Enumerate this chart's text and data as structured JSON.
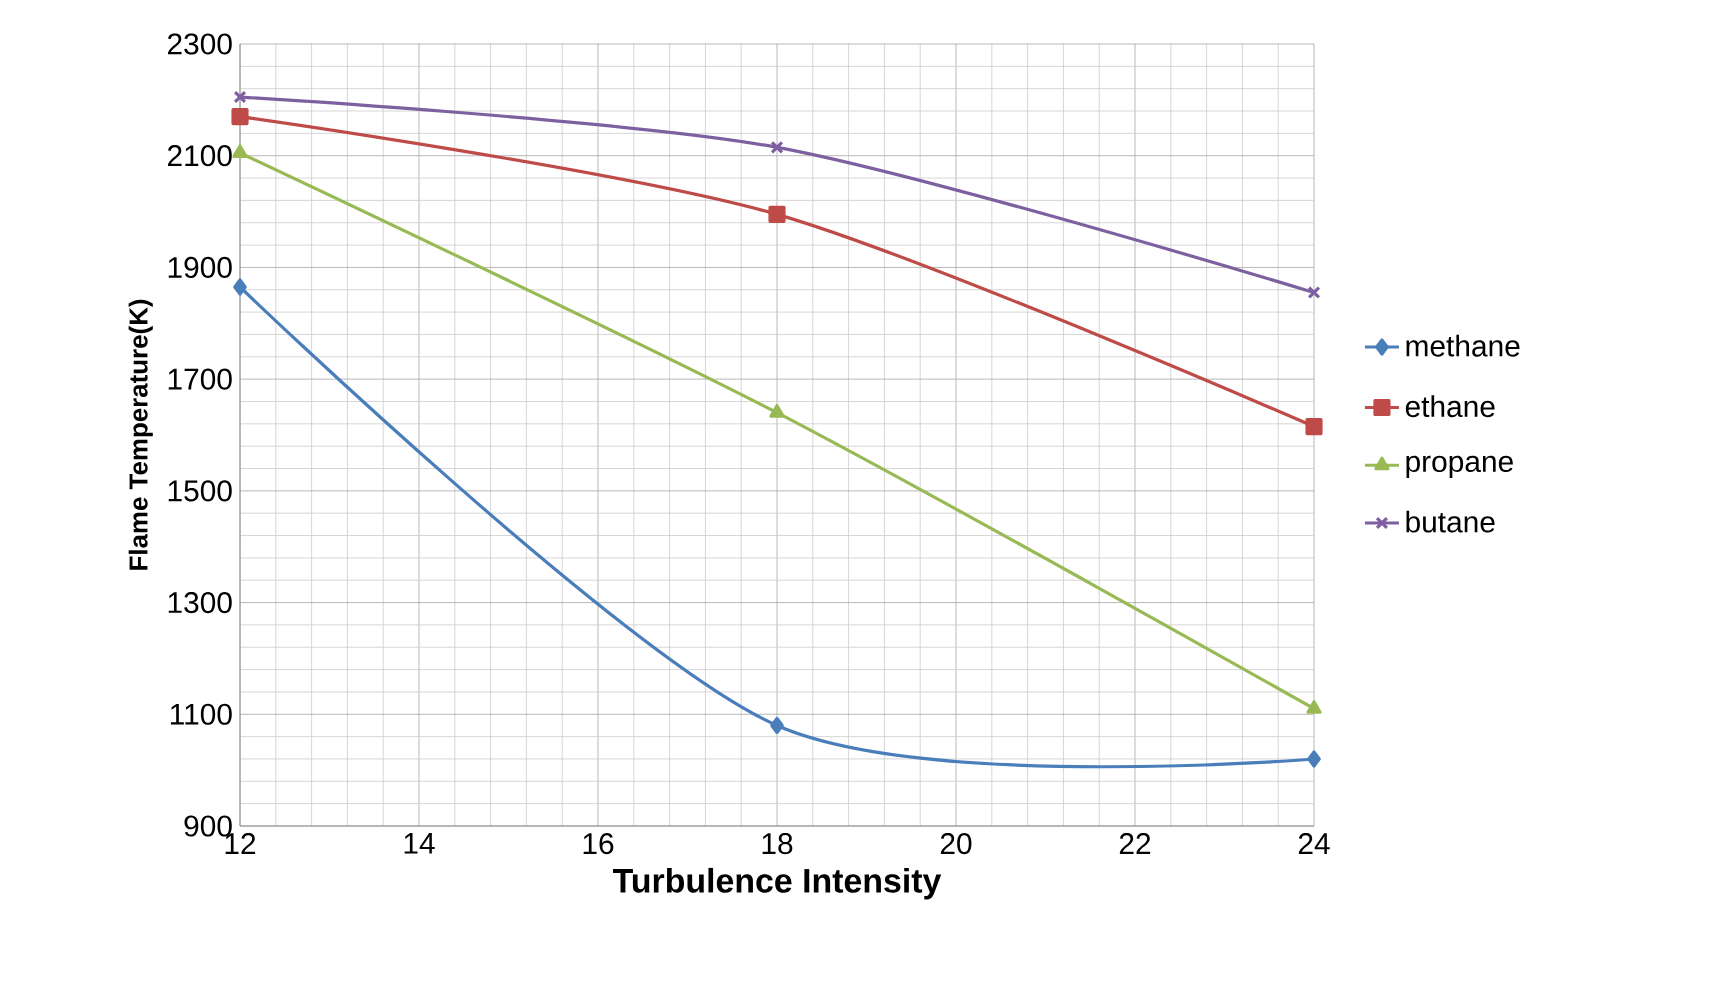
{
  "chart_data": {
    "type": "line",
    "xlabel": "Turbulence Intensity",
    "ylabel": "Flame Temperature(K)",
    "x": [
      12,
      18,
      24
    ],
    "series": [
      {
        "name": "methane",
        "color": "#4a7ebb",
        "marker": "diamond",
        "values": [
          1865,
          1080,
          1020
        ]
      },
      {
        "name": "ethane",
        "color": "#be4b48",
        "marker": "square",
        "values": [
          2170,
          1995,
          1615
        ]
      },
      {
        "name": "propane",
        "color": "#98b954",
        "marker": "triangle",
        "values": [
          2105,
          1640,
          1110
        ]
      },
      {
        "name": "butane",
        "color": "#7d60a0",
        "marker": "cross",
        "values": [
          2205,
          2115,
          1855
        ]
      }
    ],
    "xlim": [
      12,
      24
    ],
    "xticks": [
      12,
      14,
      16,
      18,
      20,
      22,
      24
    ],
    "ylim": [
      900,
      2300
    ],
    "yticks": [
      900,
      1100,
      1300,
      1500,
      1700,
      1900,
      2100,
      2300
    ],
    "grid": true,
    "legend": "right",
    "line_style": "solid"
  }
}
